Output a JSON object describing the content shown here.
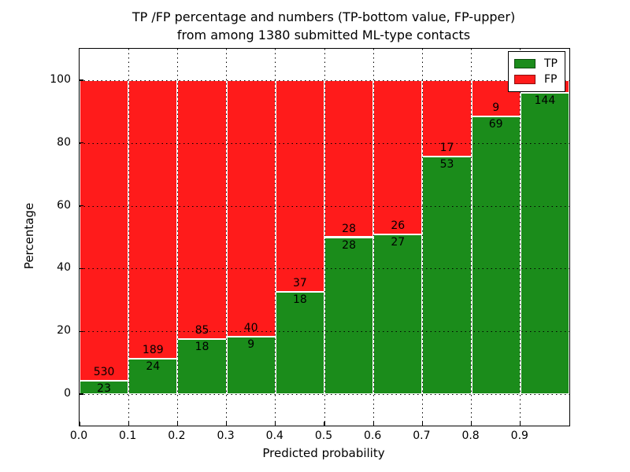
{
  "figure": {
    "title_line1": "TP /FP percentage and numbers (TP-bottom value, FP-upper)",
    "title_line2": "from among 1380 submitted ML-type contacts"
  },
  "chart_data": {
    "type": "bar",
    "subtype": "stacked-percentage",
    "title": "TP /FP percentage and numbers (TP-bottom value, FP-upper) from among 1380 submitted ML-type contacts",
    "xlabel": "Predicted probability",
    "ylabel": "Percentage",
    "total_submitted": 1380,
    "xlim": [
      0.0,
      1.0
    ],
    "ylim": [
      -10,
      110
    ],
    "y_ticks": [
      0,
      20,
      40,
      60,
      80,
      100
    ],
    "x_tick_labels": [
      "0.0",
      "0.1",
      "0.2",
      "0.3",
      "0.4",
      "0.5",
      "0.6",
      "0.7",
      "0.8",
      "0.9"
    ],
    "grid": true,
    "grid_style": "dotted",
    "legend_position": "upper right",
    "legend": [
      {
        "label": "TP",
        "color": "#1B8C1B"
      },
      {
        "label": "FP",
        "color": "#FF1B1B"
      }
    ],
    "bins": [
      {
        "range": "0.0-0.1",
        "tp_count": 23,
        "fp_count": 530,
        "tp_percent": 4.2,
        "tp_label": "23",
        "fp_label": "530"
      },
      {
        "range": "0.1-0.2",
        "tp_count": 24,
        "fp_count": 189,
        "tp_percent": 11.3,
        "tp_label": "24",
        "fp_label": "189"
      },
      {
        "range": "0.2-0.3",
        "tp_count": 18,
        "fp_count": 85,
        "tp_percent": 17.5,
        "tp_label": "18",
        "fp_label": "85"
      },
      {
        "range": "0.3-0.4",
        "tp_count": 9,
        "fp_count": 40,
        "tp_percent": 18.4,
        "tp_label": "9",
        "fp_label": "40"
      },
      {
        "range": "0.4-0.5",
        "tp_count": 18,
        "fp_count": 37,
        "tp_percent": 32.7,
        "tp_label": "18",
        "fp_label": "37"
      },
      {
        "range": "0.5-0.6",
        "tp_count": 28,
        "fp_count": 28,
        "tp_percent": 50.0,
        "tp_label": "28",
        "fp_label": "28"
      },
      {
        "range": "0.6-0.7",
        "tp_count": 27,
        "fp_count": 26,
        "tp_percent": 50.9,
        "tp_label": "27",
        "fp_label": "26"
      },
      {
        "range": "0.7-0.8",
        "tp_count": 53,
        "fp_count": 17,
        "tp_percent": 75.7,
        "tp_label": "53",
        "fp_label": "17"
      },
      {
        "range": "0.8-0.9",
        "tp_count": 69,
        "fp_count": 9,
        "tp_percent": 88.5,
        "tp_label": "69",
        "fp_label": "9"
      },
      {
        "range": "0.9-1.0",
        "tp_count": 144,
        "fp_count": null,
        "tp_percent": 96.0,
        "tp_label": "144",
        "fp_label": ""
      }
    ],
    "colors": {
      "tp": "#1B8C1B",
      "fp": "#FF1B1B",
      "bar_edge": "#FFFFFF",
      "background": "#FFFFFF",
      "grid": "#000000",
      "text": "#000000"
    }
  }
}
